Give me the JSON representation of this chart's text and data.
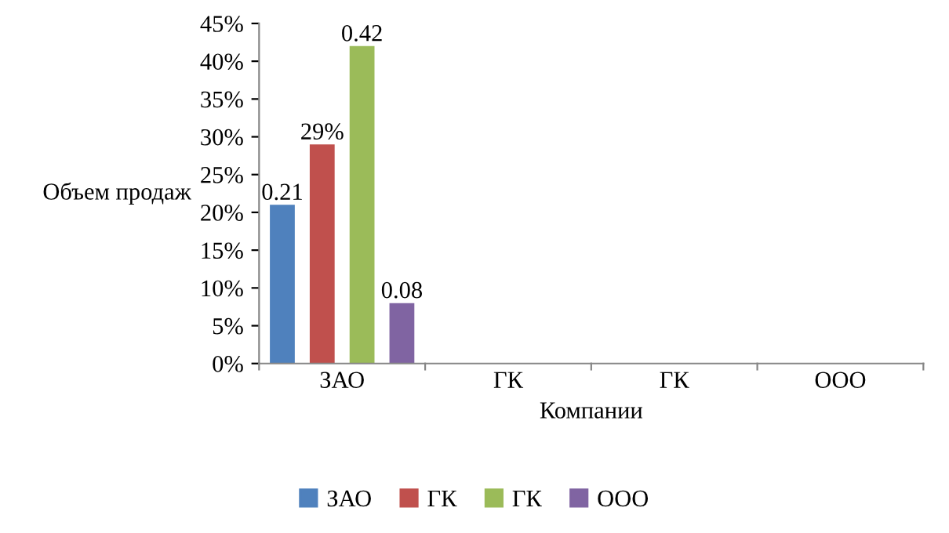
{
  "chart_data": {
    "type": "bar",
    "xlabel": "Компании",
    "ylabel": "Объем продаж",
    "categories": [
      "ЗАО",
      "ГК",
      "ГК",
      "ООО"
    ],
    "series": [
      {
        "name": "ЗАО",
        "color": "#4f81bd",
        "values": [
          0.21,
          null,
          null,
          null
        ],
        "value_labels": [
          "0.21",
          null,
          null,
          null
        ]
      },
      {
        "name": "ГК",
        "color": "#c0504d",
        "values": [
          0.29,
          null,
          null,
          null
        ],
        "value_labels": [
          "29%",
          null,
          null,
          null
        ]
      },
      {
        "name": "ГК",
        "color": "#9bbb59",
        "values": [
          0.42,
          null,
          null,
          null
        ],
        "value_labels": [
          "0.42",
          null,
          null,
          null
        ]
      },
      {
        "name": "ООО",
        "color": "#8064a2",
        "values": [
          0.08,
          null,
          null,
          null
        ],
        "value_labels": [
          "0.08",
          null,
          null,
          null
        ]
      }
    ],
    "ylim": [
      0,
      0.45
    ],
    "yticks": [
      {
        "value": 0,
        "label": "0%"
      },
      {
        "value": 0.05,
        "label": "5%"
      },
      {
        "value": 0.1,
        "label": "10%"
      },
      {
        "value": 0.15,
        "label": "15%"
      },
      {
        "value": 0.2,
        "label": "20%"
      },
      {
        "value": 0.25,
        "label": "25%"
      },
      {
        "value": 0.3,
        "label": "30%"
      },
      {
        "value": 0.35,
        "label": "35%"
      },
      {
        "value": 0.4,
        "label": "40%"
      },
      {
        "value": 0.45,
        "label": "45%"
      }
    ],
    "grid": false,
    "legend": "bottom"
  }
}
